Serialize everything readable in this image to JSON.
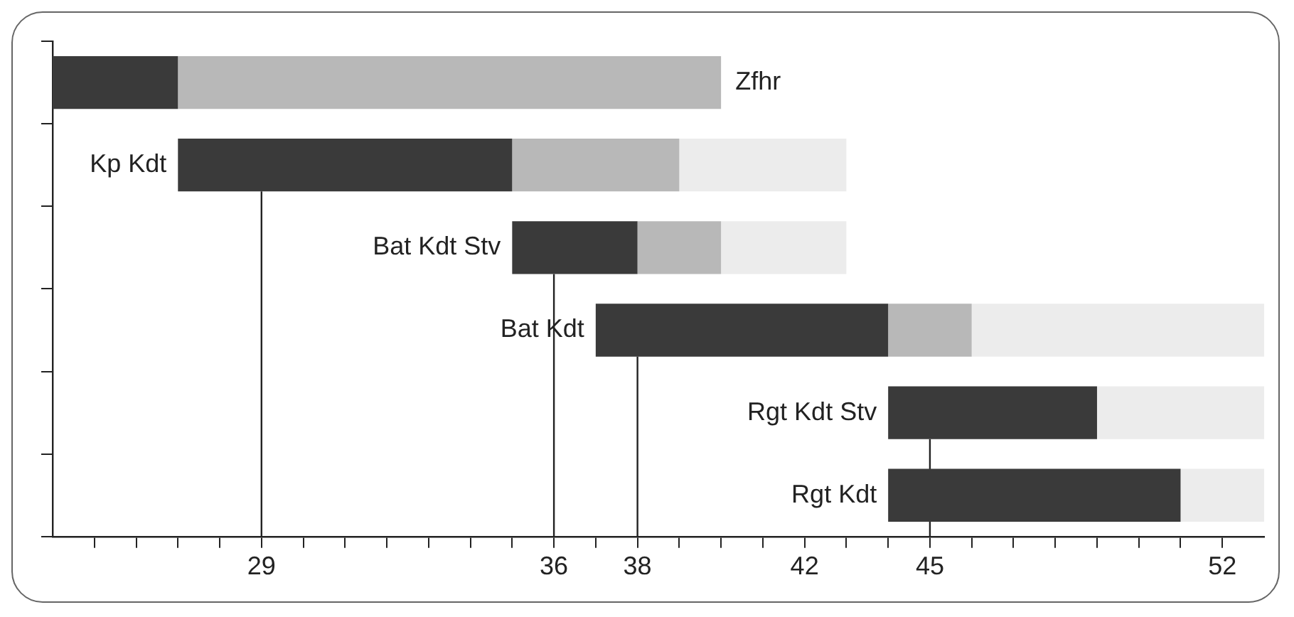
{
  "chart_data": {
    "type": "bar",
    "orientation": "horizontal",
    "categories": [
      "Zfhr",
      "Kp Kdt",
      "Bat Kdt Stv",
      "Bat Kdt",
      "Rgt Kdt Stv",
      "Rgt Kdt"
    ],
    "series": [
      {
        "color": "#3a3a3a",
        "base": [
          24,
          27,
          35,
          37,
          44,
          44
        ],
        "values": [
          3,
          8,
          3,
          7,
          5,
          7
        ]
      },
      {
        "color": "#b8b8b8",
        "base": [
          27,
          35,
          38,
          44,
          null,
          null
        ],
        "values": [
          13,
          4,
          2,
          2,
          null,
          null
        ]
      },
      {
        "color": "#ececec",
        "base": [
          null,
          39,
          40,
          46,
          49,
          51
        ],
        "values": [
          null,
          4,
          3,
          7,
          4,
          2
        ]
      }
    ],
    "xlim": [
      24,
      53
    ],
    "xticks": [
      {
        "value": 25,
        "label": null
      },
      {
        "value": 26,
        "label": null
      },
      {
        "value": 27,
        "label": null
      },
      {
        "value": 28,
        "label": null
      },
      29,
      {
        "value": 30,
        "label": null
      },
      {
        "value": 31,
        "label": null
      },
      {
        "value": 32,
        "label": null
      },
      {
        "value": 33,
        "label": null
      },
      {
        "value": 34,
        "label": null
      },
      {
        "value": 35,
        "label": null
      },
      36,
      {
        "value": 37,
        "label": null
      },
      38,
      {
        "value": 39,
        "label": null
      },
      {
        "value": 40,
        "label": null
      },
      {
        "value": 41,
        "label": null
      },
      42,
      {
        "value": 43,
        "label": null
      },
      {
        "value": 44,
        "label": null
      },
      45,
      {
        "value": 46,
        "label": null
      },
      {
        "value": 47,
        "label": null
      },
      {
        "value": 48,
        "label": null
      },
      {
        "value": 49,
        "label": null
      },
      {
        "value": 50,
        "label": null
      },
      {
        "value": 51,
        "label": null
      },
      52
    ],
    "ref_lines": [
      {
        "axis": "x",
        "value": 29
      },
      {
        "axis": "x",
        "value": 36
      },
      {
        "axis": "x",
        "value": 38
      },
      {
        "axis": "x",
        "value": 45
      }
    ],
    "grid": false,
    "legend": false
  }
}
